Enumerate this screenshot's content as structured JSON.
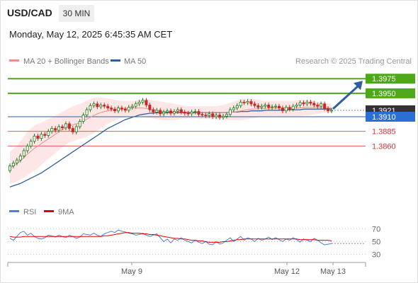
{
  "header": {
    "symbol": "USD/CAD",
    "interval": "30 MIN",
    "datetime": "Monday, May 12, 2025 6:45:35 AM CET"
  },
  "watermark": "Research © 2025 Trading Central",
  "colors": {
    "resistance": "#4ea81a",
    "support": "#e05a5a",
    "current": "#333333",
    "ma50": "#2f5f9c",
    "ma20": "#ef8d8d",
    "band_fill": "#fde3e3",
    "arrow": "#2f5f9c",
    "candle_up": "#1f7a1f",
    "candle_down": "#c62828",
    "rsi": "#4f7fd6",
    "rsi_ma": "#e00000"
  },
  "chart_data": [
    {
      "type": "candlestick",
      "legend": [
        "MA 20 + Bollinger Bands",
        "MA 50"
      ],
      "ylim": [
        1.3777,
        1.3991
      ],
      "x_ticks": [
        "May 9",
        "May 12",
        "May 13"
      ],
      "levels": [
        {
          "value": 1.3975,
          "label": "1.3975",
          "kind": "resistance"
        },
        {
          "value": 1.395,
          "label": "1.3950",
          "kind": "resistance"
        },
        {
          "value": 1.3921,
          "label": "1.3921",
          "kind": "current"
        },
        {
          "value": 1.391,
          "label": "1.3910",
          "kind": "pivot"
        },
        {
          "value": 1.3885,
          "label": "1.3885",
          "kind": "support"
        },
        {
          "value": 1.386,
          "label": "1.3860",
          "kind": "support"
        }
      ],
      "close": [
        1.3826,
        1.3831,
        1.3836,
        1.3843,
        1.3852,
        1.386,
        1.3868,
        1.3877,
        1.3873,
        1.388,
        1.3878,
        1.3885,
        1.389,
        1.3887,
        1.3893,
        1.3891,
        1.3898,
        1.389,
        1.3884,
        1.3893,
        1.3902,
        1.3913,
        1.3922,
        1.3929,
        1.3932,
        1.3927,
        1.393,
        1.3928,
        1.3925,
        1.3923,
        1.392,
        1.3925,
        1.3923,
        1.3921,
        1.3926,
        1.3928,
        1.3932,
        1.3935,
        1.3938,
        1.393,
        1.3922,
        1.3918,
        1.3921,
        1.3915,
        1.3918,
        1.392,
        1.3916,
        1.3919,
        1.3922,
        1.3918,
        1.3916,
        1.3915,
        1.3918,
        1.3919,
        1.3914,
        1.3913,
        1.3912,
        1.3915,
        1.391,
        1.3913,
        1.3909,
        1.3911,
        1.3914,
        1.3922,
        1.3925,
        1.3929,
        1.3935,
        1.3934,
        1.3936,
        1.3932,
        1.3929,
        1.3926,
        1.3928,
        1.393,
        1.3926,
        1.3927,
        1.3928,
        1.3925,
        1.392,
        1.3926,
        1.3923,
        1.3928,
        1.393,
        1.3934,
        1.3932,
        1.3935,
        1.3933,
        1.393,
        1.3928,
        1.3932,
        1.3924,
        1.392,
        1.3921
      ],
      "ma20": [
        1.3822,
        1.3826,
        1.383,
        1.3835,
        1.384,
        1.3846,
        1.3851,
        1.3856,
        1.386,
        1.3864,
        1.3868,
        1.3872,
        1.3876,
        1.388,
        1.3884,
        1.3888,
        1.3891,
        1.3894,
        1.3896,
        1.3898,
        1.39,
        1.3903,
        1.3906,
        1.3909,
        1.3912,
        1.3915,
        1.3917,
        1.3919,
        1.392,
        1.3921,
        1.3922,
        1.3923,
        1.3923,
        1.3924,
        1.3924,
        1.3925,
        1.3925,
        1.3925,
        1.3925,
        1.3924,
        1.3923,
        1.3922,
        1.3921,
        1.392,
        1.3919,
        1.3919,
        1.3918,
        1.3918,
        1.3918,
        1.3918,
        1.3918,
        1.3918,
        1.3918,
        1.3918,
        1.3917,
        1.3917,
        1.3917,
        1.3917,
        1.3917,
        1.3917,
        1.3917,
        1.3917,
        1.3917,
        1.3918,
        1.3918,
        1.3919,
        1.392,
        1.3921,
        1.3922,
        1.3923,
        1.3923,
        1.3924,
        1.3924,
        1.3924,
        1.3925,
        1.3925,
        1.3925,
        1.3925,
        1.3925,
        1.3925,
        1.3925,
        1.3925,
        1.3925,
        1.3925,
        1.3926,
        1.3926,
        1.3926,
        1.3926,
        1.3926,
        1.3926,
        1.3926,
        1.3925,
        1.3925
      ],
      "bb_upper": [
        1.385,
        1.3855,
        1.386,
        1.3868,
        1.3876,
        1.3884,
        1.389,
        1.3895,
        1.3898,
        1.39,
        1.3903,
        1.3906,
        1.3909,
        1.3912,
        1.3915,
        1.3918,
        1.3922,
        1.3925,
        1.3928,
        1.393,
        1.3932,
        1.3935,
        1.3938,
        1.394,
        1.3942,
        1.3943,
        1.3943,
        1.3942,
        1.3941,
        1.394,
        1.3939,
        1.3938,
        1.3937,
        1.3937,
        1.3937,
        1.3937,
        1.3938,
        1.3939,
        1.394,
        1.394,
        1.3939,
        1.3938,
        1.3937,
        1.3936,
        1.3935,
        1.3934,
        1.3933,
        1.3932,
        1.3931,
        1.393,
        1.3929,
        1.3928,
        1.3928,
        1.3928,
        1.3928,
        1.3928,
        1.3928,
        1.3928,
        1.3928,
        1.3928,
        1.3929,
        1.393,
        1.3932,
        1.3934,
        1.3936,
        1.3938,
        1.394,
        1.3941,
        1.3941,
        1.3941,
        1.394,
        1.3939,
        1.3938,
        1.3937,
        1.3937,
        1.3937,
        1.3937,
        1.3937,
        1.3937,
        1.3937,
        1.3937,
        1.3937,
        1.3938,
        1.3939,
        1.3939,
        1.3939,
        1.3938,
        1.3937,
        1.3936,
        1.3935,
        1.3934,
        1.3933,
        1.3932
      ],
      "bb_lower": [
        1.3796,
        1.3797,
        1.38,
        1.3803,
        1.3806,
        1.381,
        1.3814,
        1.3818,
        1.3822,
        1.3828,
        1.3833,
        1.3838,
        1.3843,
        1.3848,
        1.3853,
        1.3858,
        1.3862,
        1.3866,
        1.3868,
        1.387,
        1.3872,
        1.3874,
        1.3876,
        1.3879,
        1.3882,
        1.3886,
        1.389,
        1.3894,
        1.3898,
        1.3901,
        1.3904,
        1.3906,
        1.3908,
        1.3909,
        1.391,
        1.3911,
        1.3911,
        1.3911,
        1.391,
        1.3909,
        1.3908,
        1.3907,
        1.3906,
        1.3905,
        1.3904,
        1.3904,
        1.3904,
        1.3904,
        1.3905,
        1.3906,
        1.3906,
        1.3907,
        1.3907,
        1.3907,
        1.3906,
        1.3906,
        1.3906,
        1.3906,
        1.3906,
        1.3906,
        1.3906,
        1.3905,
        1.3904,
        1.3904,
        1.3904,
        1.3904,
        1.3904,
        1.3905,
        1.3906,
        1.3907,
        1.3908,
        1.3909,
        1.391,
        1.391,
        1.3911,
        1.3911,
        1.3911,
        1.3911,
        1.3911,
        1.3911,
        1.3911,
        1.3911,
        1.3911,
        1.3911,
        1.3912,
        1.3912,
        1.3913,
        1.3914,
        1.3915,
        1.3916,
        1.3917,
        1.3917,
        1.3918
      ],
      "ma50": [
        1.379,
        1.3792,
        1.3794,
        1.3796,
        1.3799,
        1.3802,
        1.3805,
        1.3808,
        1.3811,
        1.3814,
        1.3818,
        1.3822,
        1.3826,
        1.383,
        1.3834,
        1.3838,
        1.3842,
        1.3846,
        1.385,
        1.3854,
        1.3858,
        1.3862,
        1.3866,
        1.387,
        1.3874,
        1.3878,
        1.3882,
        1.3886,
        1.389,
        1.3893,
        1.3896,
        1.3899,
        1.3902,
        1.3905,
        1.3907,
        1.3909,
        1.3911,
        1.3913,
        1.3914,
        1.3915,
        1.3916,
        1.3916,
        1.3917,
        1.3917,
        1.3917,
        1.3917,
        1.3917,
        1.3917,
        1.3917,
        1.3917,
        1.3917,
        1.3917,
        1.3917,
        1.3917,
        1.3917,
        1.3917,
        1.3917,
        1.3917,
        1.3917,
        1.3917,
        1.3917,
        1.3917,
        1.3917,
        1.3918,
        1.3918,
        1.3918,
        1.3919,
        1.3919,
        1.3919,
        1.392,
        1.392,
        1.392,
        1.392,
        1.3921,
        1.3921,
        1.3921,
        1.3921,
        1.3921,
        1.3922,
        1.3922,
        1.3922,
        1.3922,
        1.3922,
        1.3922,
        1.3923,
        1.3923,
        1.3923,
        1.3923,
        1.3923,
        1.3923,
        1.3923,
        1.3923,
        1.3923
      ]
    },
    {
      "type": "line",
      "legend": [
        "RSI",
        "9MA"
      ],
      "ylim": [
        23,
        78
      ],
      "y_ticks": [
        70,
        50,
        30
      ],
      "series": [
        {
          "name": "RSI",
          "values": [
            55,
            52,
            58,
            64,
            66,
            60,
            63,
            58,
            55,
            54,
            56,
            60,
            59,
            57,
            60,
            58,
            56,
            60,
            58,
            55,
            57,
            62,
            61,
            60,
            63,
            60,
            58,
            62,
            64,
            66,
            64,
            68,
            66,
            65,
            63,
            62,
            60,
            61,
            63,
            60,
            58,
            60,
            62,
            56,
            50,
            54,
            48,
            54,
            52,
            56,
            52,
            50,
            48,
            52,
            49,
            47,
            50,
            46,
            45,
            50,
            46,
            48,
            52,
            56,
            50,
            54,
            58,
            52,
            56,
            54,
            50,
            55,
            52,
            54,
            57,
            53,
            56,
            53,
            50,
            54,
            52,
            56,
            53,
            49,
            54,
            52,
            50,
            55,
            52,
            48,
            45,
            46,
            47
          ]
        },
        {
          "name": "9MA",
          "values": [
            58,
            57,
            57,
            57,
            58,
            58,
            58,
            58,
            58,
            58,
            58,
            58,
            58,
            58,
            58,
            58,
            58,
            58,
            58,
            58,
            58,
            58,
            58,
            58,
            58,
            58,
            58,
            59,
            59,
            60,
            61,
            62,
            63,
            64,
            64,
            63,
            63,
            63,
            62,
            62,
            61,
            61,
            60,
            59,
            58,
            57,
            56,
            55,
            55,
            54,
            54,
            53,
            52,
            52,
            51,
            51,
            50,
            49,
            49,
            49,
            49,
            50,
            50,
            51,
            52,
            53,
            53,
            54,
            54,
            54,
            54,
            54,
            54,
            54,
            54,
            54,
            54,
            54,
            54,
            54,
            54,
            54,
            54,
            53,
            53,
            53,
            53,
            53,
            52,
            52,
            52,
            52,
            51
          ]
        }
      ]
    }
  ]
}
